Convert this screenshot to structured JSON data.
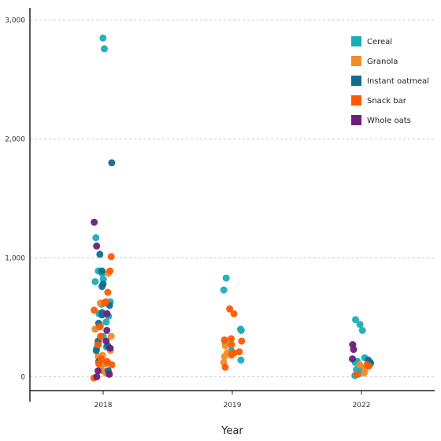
{
  "chart_data": {
    "type": "scatter",
    "title": "",
    "xlabel": "Year",
    "ylabel": "",
    "categories": [
      "2018",
      "2019",
      "2022"
    ],
    "ylim": [
      -150,
      3150
    ],
    "yticks": [
      0,
      1000,
      2000,
      3000
    ],
    "ytick_labels": [
      "0",
      "1,000",
      "2,000",
      "3,000"
    ],
    "grid": true,
    "legend_position": "top-right",
    "series": [
      {
        "name": "Cereal",
        "color": "#1AADB8",
        "points": [
          {
            "x": "2018",
            "y": 2850
          },
          {
            "x": "2018",
            "y": 2760
          },
          {
            "x": "2018",
            "y": 1170
          },
          {
            "x": "2018",
            "y": 890
          },
          {
            "x": "2018",
            "y": 870
          },
          {
            "x": "2018",
            "y": 820
          },
          {
            "x": "2018",
            "y": 800
          },
          {
            "x": "2018",
            "y": 630
          },
          {
            "x": "2018",
            "y": 620
          },
          {
            "x": "2018",
            "y": 610
          },
          {
            "x": "2018",
            "y": 530
          },
          {
            "x": "2018",
            "y": 510
          },
          {
            "x": "2018",
            "y": 460
          },
          {
            "x": "2018",
            "y": 400
          },
          {
            "x": "2018",
            "y": 340
          },
          {
            "x": "2018",
            "y": 290
          },
          {
            "x": "2018",
            "y": 250
          },
          {
            "x": "2018",
            "y": 240
          },
          {
            "x": "2018",
            "y": 110
          },
          {
            "x": "2018",
            "y": 50
          },
          {
            "x": "2019",
            "y": 830
          },
          {
            "x": "2019",
            "y": 730
          },
          {
            "x": "2019",
            "y": 400
          },
          {
            "x": "2019",
            "y": 390
          },
          {
            "x": "2019",
            "y": 290
          },
          {
            "x": "2019",
            "y": 220
          },
          {
            "x": "2019",
            "y": 140
          },
          {
            "x": "2022",
            "y": 480
          },
          {
            "x": "2022",
            "y": 440
          },
          {
            "x": "2022",
            "y": 390
          },
          {
            "x": "2022",
            "y": 160
          },
          {
            "x": "2022",
            "y": 130
          },
          {
            "x": "2022",
            "y": 120
          },
          {
            "x": "2022",
            "y": 110
          },
          {
            "x": "2022",
            "y": 80
          },
          {
            "x": "2022",
            "y": 60
          },
          {
            "x": "2022",
            "y": 50
          },
          {
            "x": "2022",
            "y": 20
          },
          {
            "x": "2022",
            "y": 10
          }
        ]
      },
      {
        "name": "Granola",
        "color": "#F28C28",
        "points": [
          {
            "x": "2018",
            "y": 870
          },
          {
            "x": "2018",
            "y": 620
          },
          {
            "x": "2018",
            "y": 430
          },
          {
            "x": "2018",
            "y": 400
          },
          {
            "x": "2018",
            "y": 340
          },
          {
            "x": "2018",
            "y": 270
          },
          {
            "x": "2018",
            "y": 220
          },
          {
            "x": "2018",
            "y": 180
          },
          {
            "x": "2018",
            "y": 170
          },
          {
            "x": "2018",
            "y": 110
          },
          {
            "x": "2018",
            "y": 60
          },
          {
            "x": "2018",
            "y": 40
          },
          {
            "x": "2018",
            "y": 30
          },
          {
            "x": "2019",
            "y": 260
          },
          {
            "x": "2019",
            "y": 200
          },
          {
            "x": "2019",
            "y": 180
          },
          {
            "x": "2019",
            "y": 170
          },
          {
            "x": "2019",
            "y": 120
          },
          {
            "x": "2022",
            "y": 100
          },
          {
            "x": "2022",
            "y": 60
          },
          {
            "x": "2022",
            "y": 30
          }
        ]
      },
      {
        "name": "Instant oatmeal",
        "color": "#136C8E",
        "points": [
          {
            "x": "2018",
            "y": 1800
          },
          {
            "x": "2018",
            "y": 1030
          },
          {
            "x": "2018",
            "y": 890
          },
          {
            "x": "2018",
            "y": 780
          },
          {
            "x": "2018",
            "y": 760
          },
          {
            "x": "2018",
            "y": 600
          },
          {
            "x": "2018",
            "y": 540
          },
          {
            "x": "2018",
            "y": 520
          },
          {
            "x": "2018",
            "y": 450
          },
          {
            "x": "2018",
            "y": 300
          },
          {
            "x": "2018",
            "y": 260
          },
          {
            "x": "2018",
            "y": 220
          },
          {
            "x": "2018",
            "y": 130
          },
          {
            "x": "2018",
            "y": 50
          },
          {
            "x": "2022",
            "y": 140
          },
          {
            "x": "2022",
            "y": 120
          }
        ]
      },
      {
        "name": "Snack bar",
        "color": "#FF5A00",
        "points": [
          {
            "x": "2018",
            "y": 1010
          },
          {
            "x": "2018",
            "y": 890
          },
          {
            "x": "2018",
            "y": 710
          },
          {
            "x": "2018",
            "y": 630
          },
          {
            "x": "2018",
            "y": 620
          },
          {
            "x": "2018",
            "y": 560
          },
          {
            "x": "2018",
            "y": 420
          },
          {
            "x": "2018",
            "y": 340
          },
          {
            "x": "2018",
            "y": 270
          },
          {
            "x": "2018",
            "y": 150
          },
          {
            "x": "2018",
            "y": 130
          },
          {
            "x": "2018",
            "y": 120
          },
          {
            "x": "2018",
            "y": 110
          },
          {
            "x": "2018",
            "y": 100
          },
          {
            "x": "2018",
            "y": -10
          },
          {
            "x": "2019",
            "y": 570
          },
          {
            "x": "2019",
            "y": 530
          },
          {
            "x": "2019",
            "y": 320
          },
          {
            "x": "2019",
            "y": 310
          },
          {
            "x": "2019",
            "y": 300
          },
          {
            "x": "2019",
            "y": 270
          },
          {
            "x": "2019",
            "y": 210
          },
          {
            "x": "2019",
            "y": 200
          },
          {
            "x": "2019",
            "y": 190
          },
          {
            "x": "2019",
            "y": 80
          },
          {
            "x": "2022",
            "y": 100
          },
          {
            "x": "2022",
            "y": 90
          },
          {
            "x": "2022",
            "y": 20
          }
        ]
      },
      {
        "name": "Whole oats",
        "color": "#6B1F7C",
        "points": [
          {
            "x": "2018",
            "y": 1300
          },
          {
            "x": "2018",
            "y": 1100
          },
          {
            "x": "2018",
            "y": 530
          },
          {
            "x": "2018",
            "y": 390
          },
          {
            "x": "2018",
            "y": 300
          },
          {
            "x": "2018",
            "y": 240
          },
          {
            "x": "2018",
            "y": 50
          },
          {
            "x": "2018",
            "y": 20
          },
          {
            "x": "2018",
            "y": 0
          },
          {
            "x": "2022",
            "y": 270
          },
          {
            "x": "2022",
            "y": 230
          },
          {
            "x": "2022",
            "y": 150
          }
        ]
      }
    ]
  }
}
